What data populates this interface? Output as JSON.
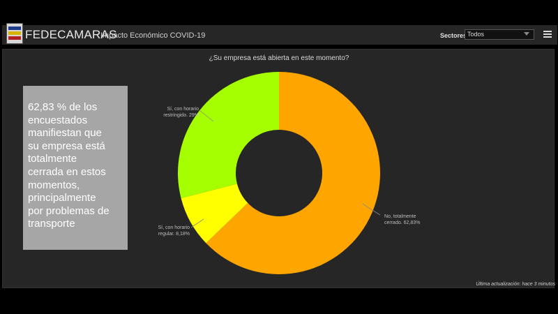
{
  "header": {
    "title": "FEDECAMARAS",
    "subtitle": "Impacto Económico COVID-19",
    "sector_label": "Sectores",
    "sector_value": "Todos",
    "menu_icon": "hamburger-icon",
    "colors": {
      "bar": "#262626",
      "background": "#000000"
    }
  },
  "question": "¿Su empresa está abierta en este momento?",
  "callout": {
    "lines": [
      "62,83 % de los",
      "encuestados",
      "manifiestan que",
      "su empresa está",
      "totalmente",
      "cerrada en estos",
      "momentos,",
      "principalmente",
      "por problemas de",
      "transporte"
    ],
    "color": "#a6a6a6"
  },
  "chart_data": {
    "type": "pie",
    "title": "¿Su empresa está abierta en este momento?",
    "donut": true,
    "slices": [
      {
        "label_line1": "No, totalmente",
        "label_line2": "cerrado. 62,83%",
        "value": 62.83,
        "color": "#ffa500"
      },
      {
        "label_line1": "Sí, con horario",
        "label_line2": "regular. 8,18%",
        "value": 8.18,
        "color": "#ffff00"
      },
      {
        "label_line1": "Sí, con horario",
        "label_line2": "restringido. 29%",
        "value": 28.99,
        "color": "#a6ff00"
      }
    ]
  },
  "footer": "Última actualización: hace 3 minutos"
}
